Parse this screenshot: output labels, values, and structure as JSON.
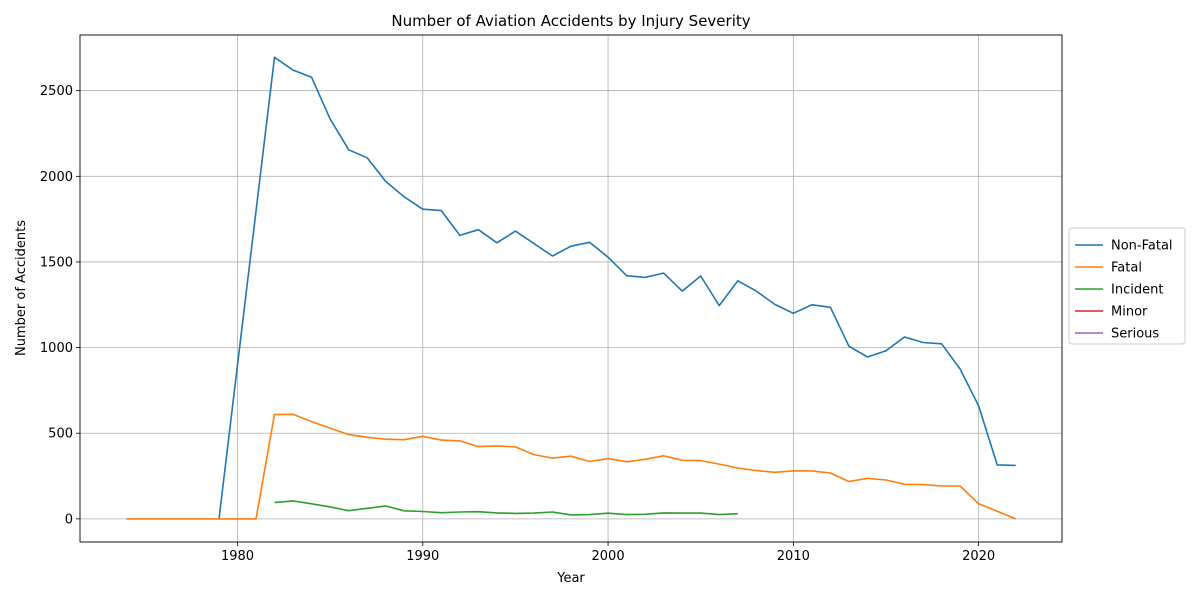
{
  "chart_data": {
    "type": "line",
    "title": "Number of Aviation Accidents by Injury Severity",
    "xlabel": "Year",
    "ylabel": "Number of Accidents",
    "xlim": [
      1971.5,
      2024.5
    ],
    "ylim": [
      -135,
      2825
    ],
    "xticks": [
      1980,
      1990,
      2000,
      2010,
      2020
    ],
    "yticks": [
      0,
      500,
      1000,
      1500,
      2000,
      2500
    ],
    "grid": true,
    "legend_position": "center-right-outside",
    "series": [
      {
        "name": "Non-Fatal",
        "color": "#1f77b4",
        "points": [
          [
            1979,
            0
          ],
          [
            1982,
            2695
          ],
          [
            1983,
            2620
          ],
          [
            1984,
            2578
          ],
          [
            1985,
            2335
          ],
          [
            1986,
            2155
          ],
          [
            1987,
            2108
          ],
          [
            1988,
            1970
          ],
          [
            1989,
            1880
          ],
          [
            1990,
            1808
          ],
          [
            1991,
            1800
          ],
          [
            1992,
            1655
          ],
          [
            1993,
            1688
          ],
          [
            1994,
            1612
          ],
          [
            1995,
            1680
          ],
          [
            1996,
            1608
          ],
          [
            1997,
            1535
          ],
          [
            1998,
            1592
          ],
          [
            1999,
            1615
          ],
          [
            2000,
            1528
          ],
          [
            2001,
            1420
          ],
          [
            2002,
            1410
          ],
          [
            2003,
            1435
          ],
          [
            2004,
            1330
          ],
          [
            2005,
            1418
          ],
          [
            2006,
            1245
          ],
          [
            2007,
            1390
          ],
          [
            2008,
            1330
          ],
          [
            2009,
            1252
          ],
          [
            2010,
            1200
          ],
          [
            2011,
            1250
          ],
          [
            2012,
            1235
          ],
          [
            2013,
            1008
          ],
          [
            2014,
            945
          ],
          [
            2015,
            982
          ],
          [
            2016,
            1062
          ],
          [
            2017,
            1030
          ],
          [
            2018,
            1022
          ],
          [
            2019,
            875
          ],
          [
            2020,
            660
          ],
          [
            2021,
            315
          ],
          [
            2022,
            312
          ]
        ]
      },
      {
        "name": "Fatal",
        "color": "#ff7f0e",
        "points": [
          [
            1974,
            0
          ],
          [
            1975,
            0
          ],
          [
            1976,
            0
          ],
          [
            1977,
            0
          ],
          [
            1978,
            0
          ],
          [
            1979,
            0
          ],
          [
            1980,
            0
          ],
          [
            1981,
            0
          ],
          [
            1982,
            610
          ],
          [
            1983,
            610
          ],
          [
            1984,
            568
          ],
          [
            1985,
            530
          ],
          [
            1986,
            492
          ],
          [
            1987,
            476
          ],
          [
            1988,
            465
          ],
          [
            1989,
            462
          ],
          [
            1990,
            482
          ],
          [
            1991,
            460
          ],
          [
            1992,
            455
          ],
          [
            1993,
            422
          ],
          [
            1994,
            426
          ],
          [
            1995,
            420
          ],
          [
            1996,
            375
          ],
          [
            1997,
            355
          ],
          [
            1998,
            366
          ],
          [
            1999,
            335
          ],
          [
            2000,
            352
          ],
          [
            2001,
            333
          ],
          [
            2002,
            348
          ],
          [
            2003,
            368
          ],
          [
            2004,
            342
          ],
          [
            2005,
            340
          ],
          [
            2006,
            320
          ],
          [
            2007,
            297
          ],
          [
            2008,
            282
          ],
          [
            2009,
            272
          ],
          [
            2010,
            280
          ],
          [
            2011,
            280
          ],
          [
            2012,
            268
          ],
          [
            2013,
            218
          ],
          [
            2014,
            237
          ],
          [
            2015,
            227
          ],
          [
            2016,
            202
          ],
          [
            2017,
            200
          ],
          [
            2018,
            192
          ],
          [
            2019,
            192
          ],
          [
            2020,
            88
          ],
          [
            2021,
            45
          ],
          [
            2022,
            0
          ]
        ]
      },
      {
        "name": "Incident",
        "color": "#2ca02c",
        "points": [
          [
            1982,
            95
          ],
          [
            1983,
            105
          ],
          [
            1984,
            88
          ],
          [
            1985,
            70
          ],
          [
            1986,
            48
          ],
          [
            1987,
            62
          ],
          [
            1988,
            75
          ],
          [
            1989,
            47
          ],
          [
            1990,
            43
          ],
          [
            1991,
            36
          ],
          [
            1992,
            40
          ],
          [
            1993,
            42
          ],
          [
            1994,
            35
          ],
          [
            1995,
            32
          ],
          [
            1996,
            34
          ],
          [
            1997,
            40
          ],
          [
            1998,
            23
          ],
          [
            1999,
            25
          ],
          [
            2000,
            33
          ],
          [
            2001,
            25
          ],
          [
            2002,
            27
          ],
          [
            2003,
            35
          ],
          [
            2004,
            34
          ],
          [
            2005,
            34
          ],
          [
            2006,
            25
          ],
          [
            2007,
            30
          ]
        ]
      },
      {
        "name": "Minor",
        "color": "#d62728",
        "points": []
      },
      {
        "name": "Serious",
        "color": "#9467bd",
        "points": []
      }
    ]
  }
}
